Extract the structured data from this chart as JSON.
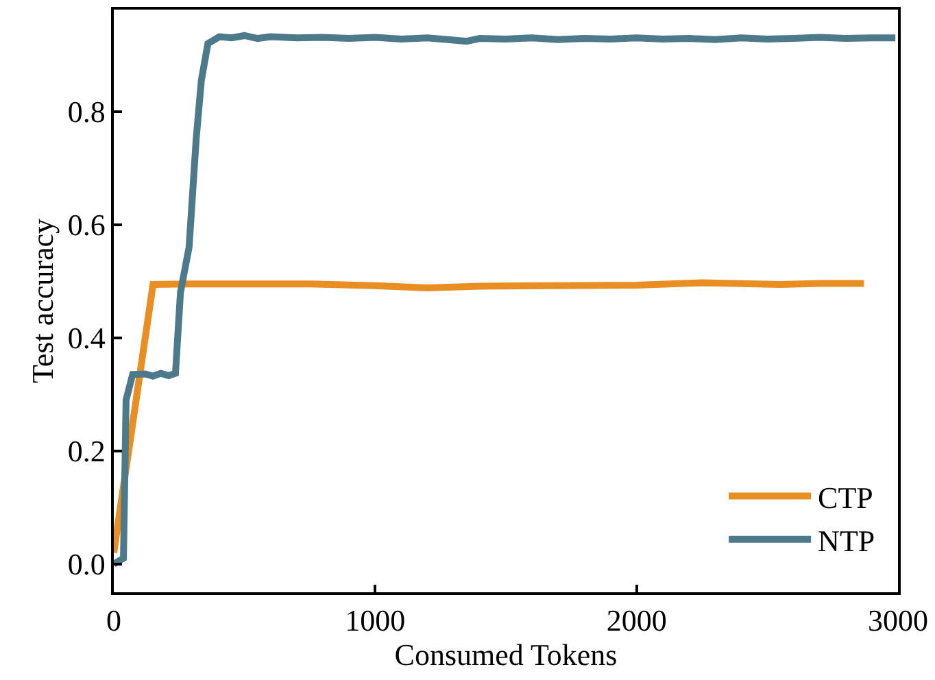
{
  "chart_data": {
    "type": "line",
    "xlabel": "Consumed Tokens",
    "ylabel": "Test accuracy",
    "xlim": [
      0,
      3000
    ],
    "ylim": [
      -0.05,
      0.98
    ],
    "xticks": [
      0,
      1000,
      2000,
      3000
    ],
    "yticks": [
      {
        "value": 0,
        "label": "0.0"
      },
      0.2,
      0.4,
      0.6,
      0.8
    ],
    "legend": "bottom right",
    "marker": "none",
    "line_style": "solid",
    "series": [
      {
        "name": "CTP",
        "color": "#e88e22",
        "x": [
          0,
          150,
          300,
          750,
          1000,
          1200,
          1400,
          1700,
          2000,
          2250,
          2550,
          2700,
          2870
        ],
        "values": [
          0.02,
          0.494,
          0.495,
          0.495,
          0.492,
          0.488,
          0.491,
          0.492,
          0.493,
          0.497,
          0.494,
          0.496,
          0.496
        ]
      },
      {
        "name": "NTP",
        "color": "#4d7a8a",
        "x": [
          0,
          37,
          47,
          72,
          120,
          150,
          180,
          210,
          236,
          255,
          288,
          315,
          335,
          360,
          404,
          450,
          500,
          550,
          600,
          700,
          800,
          900,
          1000,
          1100,
          1200,
          1300,
          1350,
          1400,
          1500,
          1600,
          1700,
          1800,
          1900,
          2000,
          2100,
          2200,
          2300,
          2400,
          2500,
          2600,
          2700,
          2800,
          2900,
          2990
        ],
        "values": [
          0.0,
          0.01,
          0.29,
          0.335,
          0.336,
          0.332,
          0.337,
          0.333,
          0.337,
          0.48,
          0.56,
          0.75,
          0.855,
          0.92,
          0.932,
          0.93,
          0.934,
          0.929,
          0.932,
          0.93,
          0.931,
          0.929,
          0.931,
          0.928,
          0.93,
          0.926,
          0.924,
          0.929,
          0.928,
          0.93,
          0.927,
          0.929,
          0.928,
          0.93,
          0.928,
          0.929,
          0.927,
          0.93,
          0.928,
          0.929,
          0.931,
          0.929,
          0.93,
          0.93
        ]
      }
    ]
  }
}
